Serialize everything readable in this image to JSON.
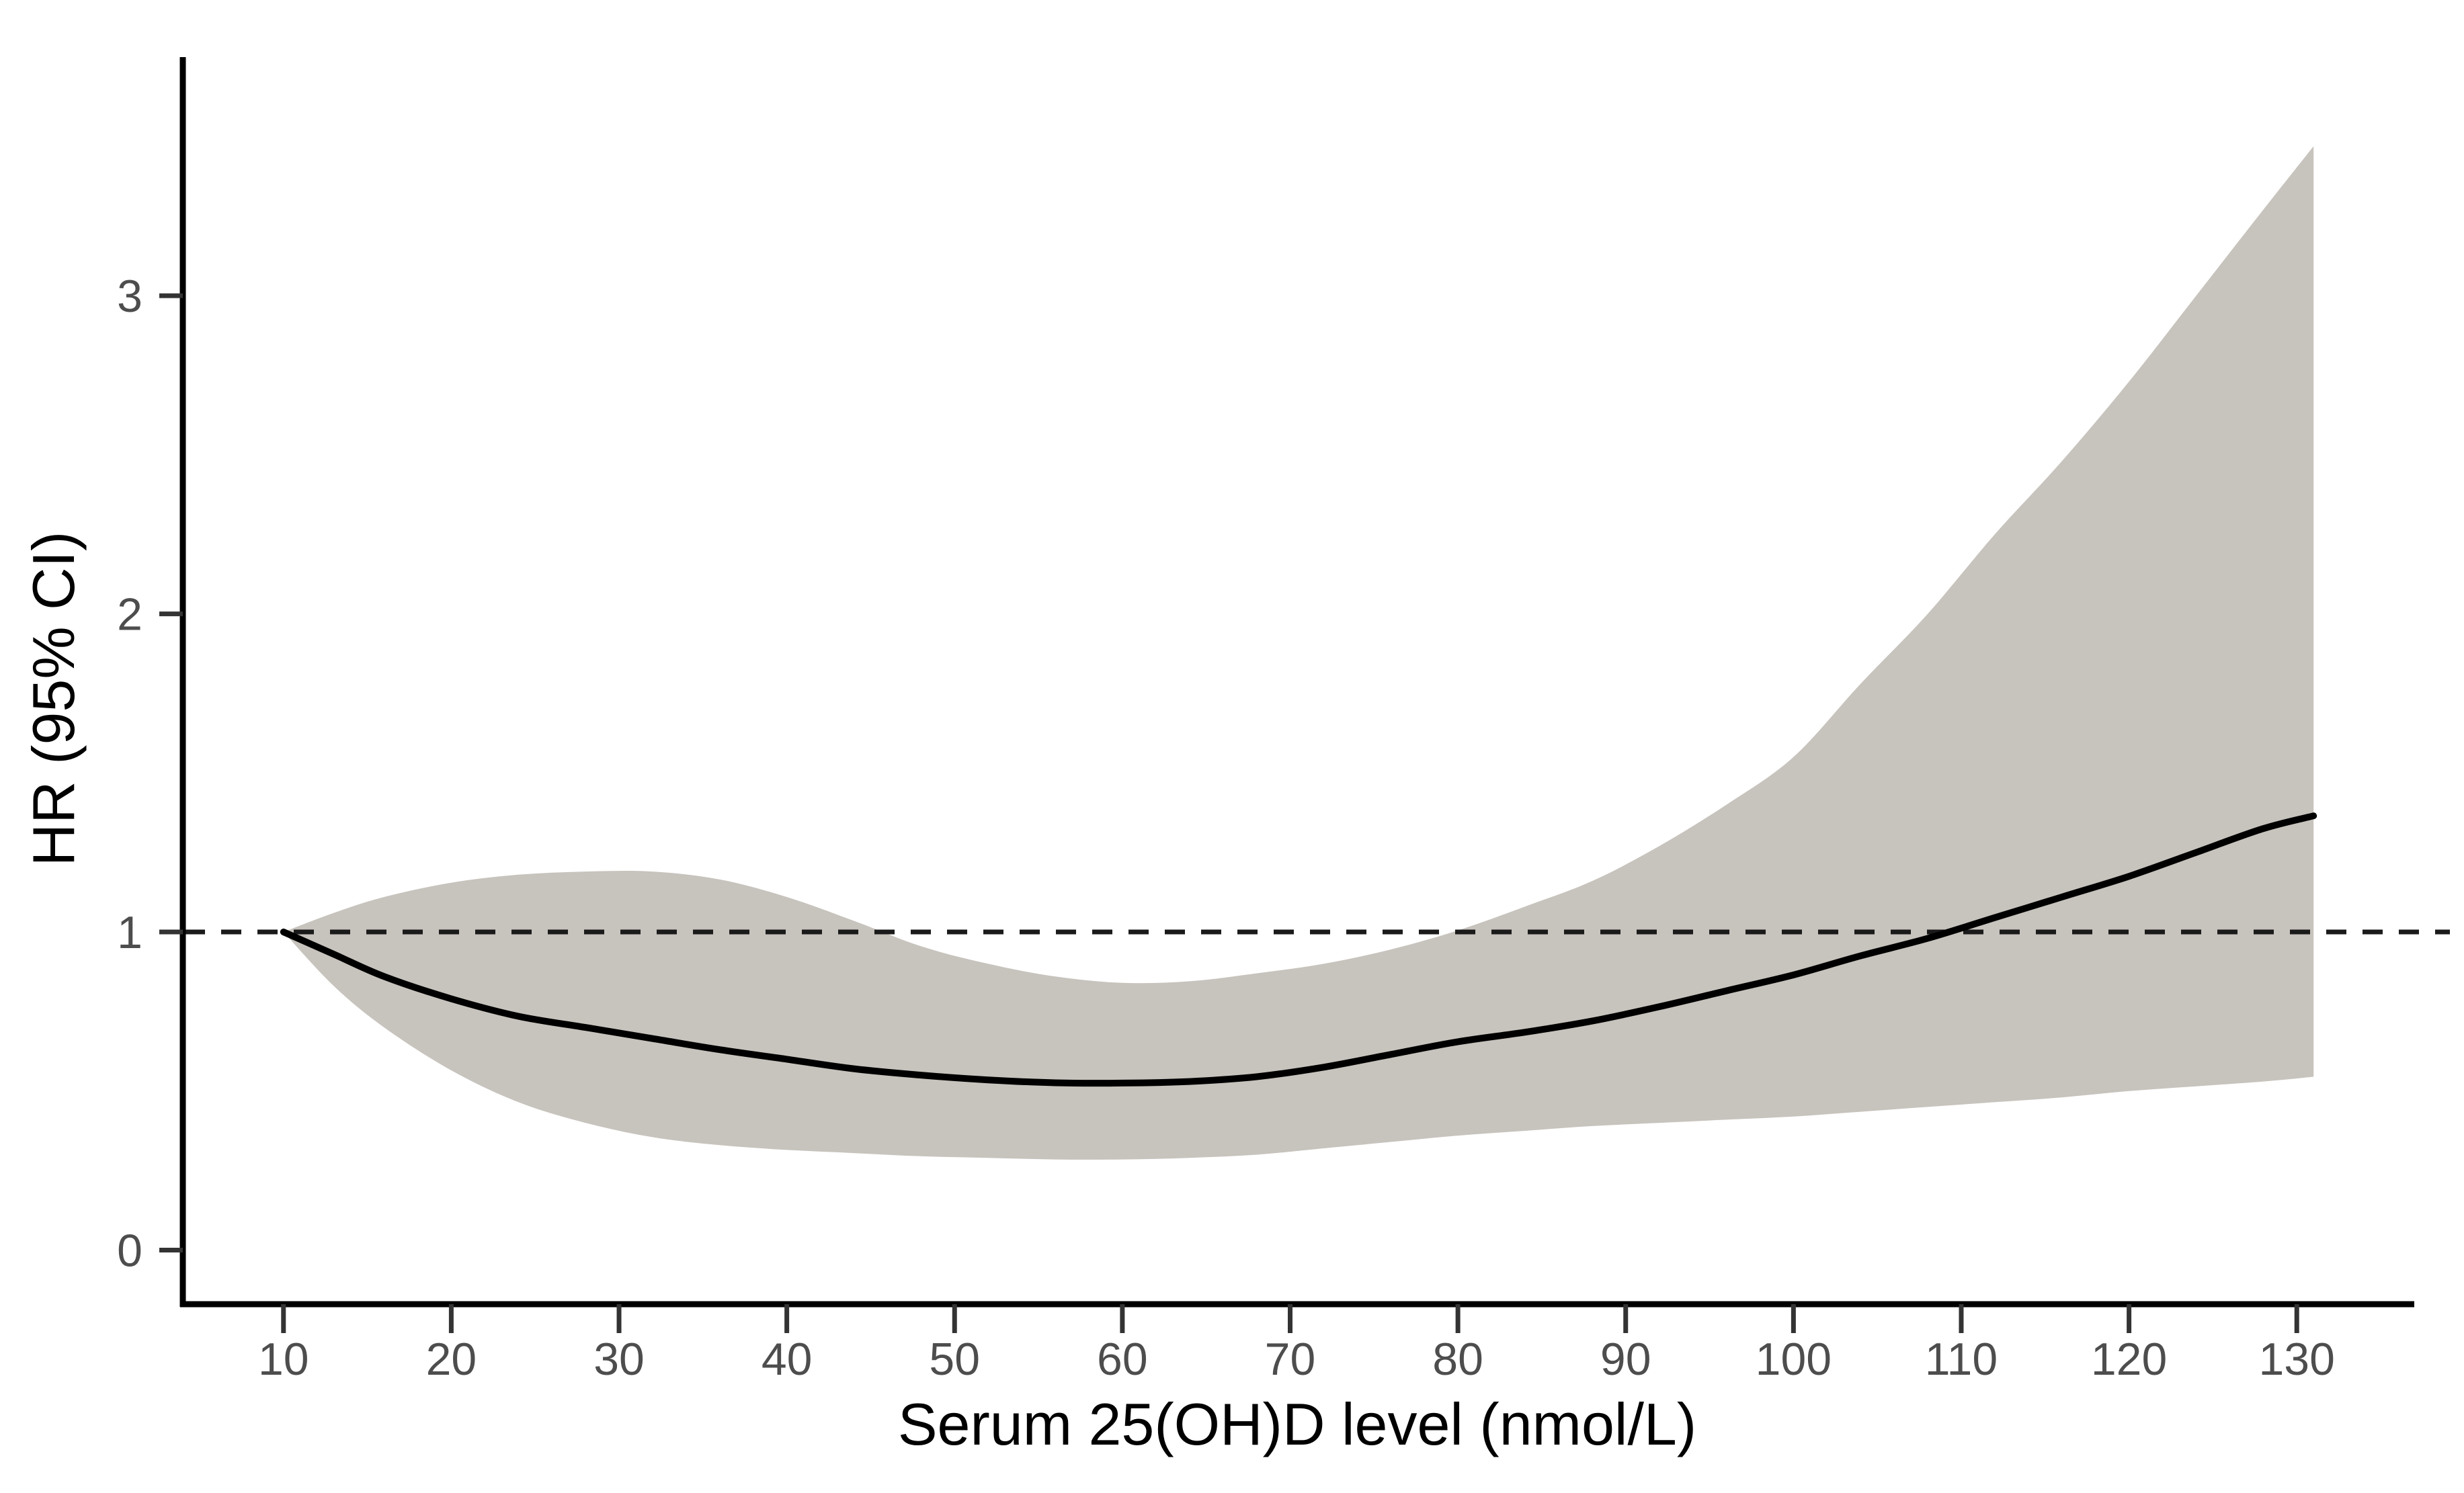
{
  "figure": {
    "title": "",
    "y_axis": {
      "label": "HR (95% CI)",
      "ticks": [
        0,
        1,
        2,
        3
      ]
    },
    "x_axis": {
      "label": "Serum 25(OH)D level (nmol/L)",
      "ticks": [
        10,
        20,
        30,
        40,
        50,
        60,
        70,
        80,
        90,
        100,
        110,
        120,
        130
      ]
    },
    "reference_line": {
      "hr": 1,
      "style": "dashed"
    }
  },
  "colors": {
    "background": "#ffffff",
    "band": "#c7c3bd",
    "curve": "#000000",
    "axis": "#000000",
    "tick": "#333333",
    "tick_label": "#4d4d4d",
    "reference": "#1a1a1a"
  },
  "chart_data": {
    "type": "line",
    "title": "",
    "xlabel": "Serum 25(OH)D level (nmol/L)",
    "ylabel": "HR (95% CI)",
    "xlim": [
      4,
      136
    ],
    "ylim": [
      -0.17,
      3.75
    ],
    "grid": false,
    "legend": "none",
    "reference_hr": 1,
    "x": [
      10,
      13,
      16,
      20,
      24,
      28,
      32,
      36,
      40,
      44,
      48,
      52,
      56,
      60,
      64,
      68,
      72,
      76,
      80,
      84,
      88,
      92,
      96,
      100,
      104,
      108,
      112,
      116,
      120,
      124,
      128,
      131
    ],
    "series": [
      {
        "name": "HR",
        "values": [
          1.0,
          0.93,
          0.86,
          0.79,
          0.735,
          0.7,
          0.665,
          0.63,
          0.6,
          0.57,
          0.55,
          0.535,
          0.526,
          0.525,
          0.53,
          0.545,
          0.575,
          0.615,
          0.655,
          0.685,
          0.72,
          0.765,
          0.815,
          0.865,
          0.925,
          0.98,
          1.045,
          1.11,
          1.175,
          1.25,
          1.325,
          1.365
        ]
      },
      {
        "name": "CI upper",
        "values": [
          1.0,
          1.06,
          1.11,
          1.155,
          1.18,
          1.19,
          1.19,
          1.165,
          1.11,
          1.035,
          0.955,
          0.9,
          0.86,
          0.84,
          0.845,
          0.87,
          0.9,
          0.945,
          1.005,
          1.08,
          1.16,
          1.27,
          1.4,
          1.55,
          1.78,
          2.0,
          2.25,
          2.48,
          2.73,
          3.0,
          3.27,
          3.47
        ]
      },
      {
        "name": "CI lower",
        "values": [
          1.0,
          0.83,
          0.7,
          0.565,
          0.465,
          0.4,
          0.355,
          0.33,
          0.315,
          0.305,
          0.295,
          0.29,
          0.285,
          0.285,
          0.29,
          0.3,
          0.32,
          0.34,
          0.36,
          0.375,
          0.39,
          0.4,
          0.41,
          0.42,
          0.435,
          0.45,
          0.465,
          0.48,
          0.5,
          0.515,
          0.53,
          0.545
        ]
      }
    ]
  }
}
